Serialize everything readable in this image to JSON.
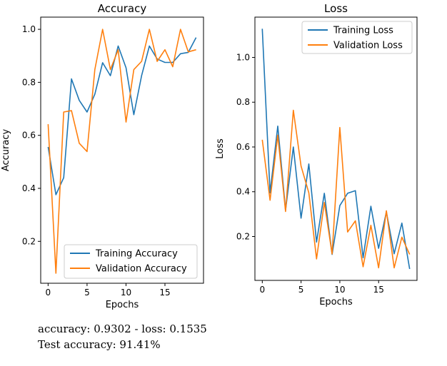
{
  "chart_data": [
    {
      "type": "line",
      "title": "Accuracy",
      "xlabel": "Epochs",
      "ylabel": "Accuracy",
      "xlim": [
        -0.95,
        19.95
      ],
      "ylim": [
        0.042,
        1.046
      ],
      "xticks": [
        0,
        5,
        10,
        15
      ],
      "yticks": [
        0.2,
        0.4,
        0.6,
        0.8,
        1.0
      ],
      "ytick_labels": [
        "0.2",
        "0.4",
        "0.6",
        "0.8",
        "1.0"
      ],
      "grid": false,
      "legend_position": "lower right",
      "x": [
        0,
        1,
        2,
        3,
        4,
        5,
        6,
        7,
        8,
        9,
        10,
        11,
        12,
        13,
        14,
        15,
        16,
        17,
        18,
        19
      ],
      "series": [
        {
          "name": "Training Accuracy",
          "color": "#1f77b4",
          "values": [
            0.556,
            0.376,
            0.44,
            0.813,
            0.732,
            0.688,
            0.755,
            0.874,
            0.825,
            0.937,
            0.855,
            0.678,
            0.825,
            0.937,
            0.888,
            0.875,
            0.875,
            0.908,
            0.913,
            0.969
          ]
        },
        {
          "name": "Validation Accuracy",
          "color": "#ff7f0e",
          "values": [
            0.642,
            0.08,
            0.688,
            0.693,
            0.57,
            0.539,
            0.848,
            1.0,
            0.848,
            0.923,
            0.65,
            0.848,
            0.879,
            1.0,
            0.879,
            0.923,
            0.859,
            1.0,
            0.915,
            0.923
          ]
        }
      ]
    },
    {
      "type": "line",
      "title": "Loss",
      "xlabel": "Epochs",
      "ylabel": "Loss",
      "xlim": [
        -0.95,
        19.95
      ],
      "ylim": [
        0.004,
        1.18
      ],
      "xticks": [
        0,
        5,
        10,
        15
      ],
      "yticks": [
        0.2,
        0.4,
        0.6,
        0.8,
        1.0
      ],
      "ytick_labels": [
        "0.2",
        "0.4",
        "0.6",
        "0.8",
        "1.0"
      ],
      "grid": false,
      "legend_position": "upper right",
      "x": [
        0,
        1,
        2,
        3,
        4,
        5,
        6,
        7,
        8,
        9,
        10,
        11,
        12,
        13,
        14,
        15,
        16,
        17,
        18,
        19
      ],
      "series": [
        {
          "name": "Training Loss",
          "color": "#1f77b4",
          "values": [
            1.128,
            0.395,
            0.693,
            0.318,
            0.6,
            0.282,
            0.524,
            0.175,
            0.393,
            0.12,
            0.338,
            0.393,
            0.405,
            0.105,
            0.335,
            0.147,
            0.31,
            0.123,
            0.26,
            0.055
          ]
        },
        {
          "name": "Validation Loss",
          "color": "#ff7f0e",
          "values": [
            0.632,
            0.362,
            0.653,
            0.312,
            0.764,
            0.515,
            0.395,
            0.1,
            0.352,
            0.122,
            0.687,
            0.22,
            0.27,
            0.065,
            0.25,
            0.06,
            0.315,
            0.06,
            0.197,
            0.12
          ]
        }
      ]
    }
  ],
  "stats": {
    "line1": "accuracy: 0.9302 - loss: 0.1535",
    "line2": "Test accuracy: 91.41%"
  }
}
